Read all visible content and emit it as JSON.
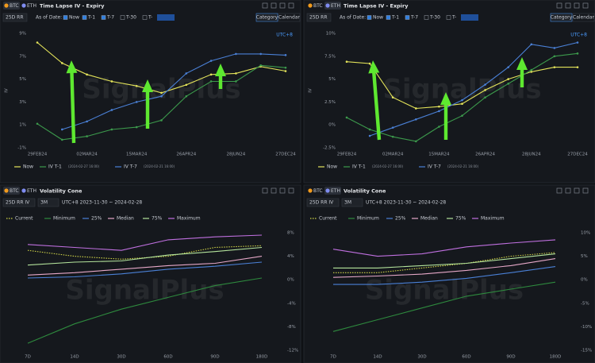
{
  "chart_data": [
    {
      "type": "line",
      "tabs": [
        "BTC",
        "ETH"
      ],
      "selected_tab": 0,
      "title": "Time Lapse IV - Expiry",
      "metric": "25D RR",
      "as_of_label": "As of Date:",
      "as_of_options": [
        "Now",
        "T-1",
        "T-7",
        "T-30",
        "T-"
      ],
      "as_of_checked": [
        true,
        true,
        true,
        false,
        false
      ],
      "view_buttons": [
        "Category",
        "Calendar"
      ],
      "timezone": "UTC+8",
      "ylabel": "IV",
      "watermark": "SignalPlus",
      "markers": true,
      "categories": [
        "29FEB24",
        null,
        "02MAR24",
        null,
        "15MAR24",
        null,
        "26APR24",
        null,
        "28JUN24",
        null,
        "27DEC24"
      ],
      "series": [
        {
          "name": "Now",
          "color": "#e4e45a",
          "values": [
            8.2,
            6.4,
            5.4,
            4.8,
            4.4,
            3.8,
            4.5,
            5.4,
            5.5,
            6.1,
            5.7
          ]
        },
        {
          "name": "IV T-1",
          "note": "(2024-02-27 16:00)",
          "color": "#3c9a4c",
          "values": [
            1.1,
            -0.3,
            0.0,
            0.6,
            0.8,
            1.4,
            3.5,
            4.8,
            4.8,
            6.2,
            6.0
          ]
        },
        {
          "name": "IV T-7",
          "note": "(2024-02-21 16:00)",
          "color": "#4a80d6",
          "values": [
            null,
            0.6,
            1.3,
            2.3,
            3.0,
            3.5,
            5.5,
            6.6,
            7.2,
            7.2,
            7.1
          ]
        }
      ],
      "ylim": [
        -1,
        9
      ],
      "yticks": [
        {
          "value": 9,
          "label": "9%"
        },
        {
          "value": 7,
          "label": "7%"
        },
        {
          "value": 5,
          "label": "5%"
        },
        {
          "value": 3,
          "label": "3%"
        },
        {
          "value": 1,
          "label": "1%"
        },
        {
          "value": -1,
          "label": "-1%"
        }
      ],
      "y_axis_side": "left",
      "grid": false
    },
    {
      "type": "line",
      "tabs": [
        "BTC",
        "ETH"
      ],
      "selected_tab": 1,
      "title": "Time Lapse IV - Expiry",
      "metric": "25D RR",
      "as_of_label": "As of Date:",
      "as_of_options": [
        "Now",
        "T-1",
        "T-7",
        "T-30",
        "T-"
      ],
      "as_of_checked": [
        true,
        true,
        true,
        false,
        false
      ],
      "view_buttons": [
        "Category",
        "Calendar"
      ],
      "timezone": "UTC+8",
      "ylabel": "IV",
      "watermark": "SignalPlus",
      "markers": true,
      "categories": [
        "29FEB24",
        null,
        "02MAR24",
        null,
        "15MAR24",
        null,
        "26APR24",
        null,
        "28JUN24",
        null,
        "27DEC24"
      ],
      "series": [
        {
          "name": "Now",
          "color": "#e4e45a",
          "values": [
            6.9,
            6.7,
            3.0,
            1.8,
            2.0,
            2.3,
            3.8,
            5.0,
            5.8,
            6.3,
            6.3
          ]
        },
        {
          "name": "IV T-1",
          "note": "(2024-02-27 16:00)",
          "color": "#3c9a4c",
          "values": [
            0.8,
            -0.5,
            -1.3,
            -1.8,
            -0.2,
            1.0,
            3.0,
            4.5,
            6.0,
            7.5,
            7.8
          ]
        },
        {
          "name": "IV T-7",
          "note": "(2024-02-21 16:00)",
          "color": "#4a80d6",
          "values": [
            null,
            -1.2,
            -0.3,
            0.6,
            1.5,
            2.7,
            4.4,
            6.3,
            8.8,
            8.4,
            9.0
          ]
        }
      ],
      "ylim": [
        -2.5,
        10
      ],
      "yticks": [
        {
          "value": 10,
          "label": "10%"
        },
        {
          "value": 7.5,
          "label": "7.5%"
        },
        {
          "value": 5,
          "label": "5%"
        },
        {
          "value": 2.5,
          "label": "2.5%"
        },
        {
          "value": 0,
          "label": "0%"
        },
        {
          "value": -2.5,
          "label": "-2.5%"
        }
      ],
      "y_axis_side": "left",
      "grid": false
    },
    {
      "type": "line",
      "tabs": [
        "BTC",
        "ETH"
      ],
      "selected_tab": 0,
      "title": "Volatility Cone",
      "metric": "25D RR IV",
      "tenor": "3M",
      "range_label": "UTC+8 2023-11-30 ~ 2024-02-28",
      "watermark": "SignalPlus",
      "markers": false,
      "categories": [
        "7D",
        "14D",
        "30D",
        "60D",
        "90D",
        "180D"
      ],
      "series": [
        {
          "name": "Current",
          "color": "#d2d648",
          "dashed": true,
          "values": [
            5.0,
            4.0,
            3.5,
            4.0,
            5.5,
            5.8
          ]
        },
        {
          "name": "Minimum",
          "color": "#2e8a3e",
          "values": [
            -10.8,
            -7.5,
            -5.0,
            -3.0,
            -1.0,
            0.3
          ]
        },
        {
          "name": "25%",
          "color": "#4a80d6",
          "values": [
            0.3,
            0.5,
            1.0,
            1.8,
            2.3,
            3.0
          ]
        },
        {
          "name": "Median",
          "color": "#e6a8c8",
          "values": [
            0.8,
            1.2,
            1.8,
            2.4,
            2.8,
            4.0
          ]
        },
        {
          "name": "75%",
          "color": "#b4e49c",
          "values": [
            2.5,
            3.0,
            3.2,
            4.2,
            4.8,
            5.5
          ]
        },
        {
          "name": "Maximum",
          "color": "#c070e0",
          "values": [
            6.0,
            5.5,
            5.0,
            6.8,
            7.3,
            7.6
          ]
        }
      ],
      "ylim": [
        -12,
        8
      ],
      "yticks": [
        {
          "value": 8,
          "label": "8%"
        },
        {
          "value": 4,
          "label": "4%"
        },
        {
          "value": 0,
          "label": "0%"
        },
        {
          "value": -4,
          "label": "-4%"
        },
        {
          "value": -8,
          "label": "-8%"
        },
        {
          "value": -12,
          "label": "-12%"
        }
      ],
      "y_axis_side": "right",
      "grid": false
    },
    {
      "type": "line",
      "tabs": [
        "BTC",
        "ETH"
      ],
      "selected_tab": 1,
      "title": "Volatility Cone",
      "metric": "25D RR IV",
      "tenor": "3M",
      "range_label": "UTC+8 2023-11-30 ~ 2024-02-28",
      "watermark": "SignalPlus",
      "markers": false,
      "categories": [
        "7D",
        "14D",
        "30D",
        "60D",
        "90D",
        "180D"
      ],
      "series": [
        {
          "name": "Current",
          "color": "#d2d648",
          "dashed": true,
          "values": [
            1.5,
            1.5,
            2.5,
            3.5,
            5.0,
            5.8
          ]
        },
        {
          "name": "Minimum",
          "color": "#2e8a3e",
          "values": [
            -11,
            -8.5,
            -6,
            -3.5,
            -2,
            -0.5
          ]
        },
        {
          "name": "25%",
          "color": "#4a80d6",
          "values": [
            -1.0,
            -1.0,
            -0.5,
            0.3,
            1.5,
            2.8
          ]
        },
        {
          "name": "Median",
          "color": "#e6a8c8",
          "values": [
            0.5,
            0.8,
            1.2,
            2.0,
            3.0,
            4.5
          ]
        },
        {
          "name": "75%",
          "color": "#b4e49c",
          "values": [
            2.5,
            2.5,
            3.0,
            3.5,
            4.5,
            5.5
          ]
        },
        {
          "name": "Maximum",
          "color": "#c070e0",
          "values": [
            6.5,
            5.0,
            5.5,
            7.0,
            7.8,
            8.5
          ]
        }
      ],
      "ylim": [
        -15,
        10
      ],
      "yticks": [
        {
          "value": 10,
          "label": "10%"
        },
        {
          "value": 5,
          "label": "5%"
        },
        {
          "value": 0,
          "label": "0%"
        },
        {
          "value": -5,
          "label": "-5%"
        },
        {
          "value": -10,
          "label": "-10%"
        },
        {
          "value": -15,
          "label": "-15%"
        }
      ],
      "y_axis_side": "right",
      "grid": false
    }
  ]
}
